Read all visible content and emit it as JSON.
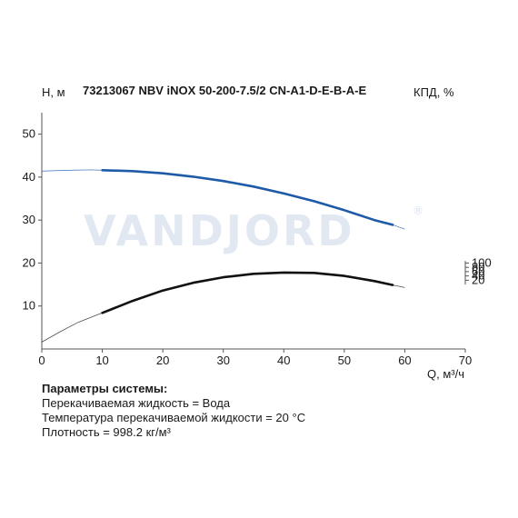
{
  "chart_data": {
    "type": "line",
    "title": "73213067 NBV iNOX 50-200-7.5/2 CN-A1-D-E-B-A-E",
    "xlabel": "Q, м³/ч",
    "ylabel": "H, м",
    "y2label": "КПД, %",
    "xlim": [
      0,
      70
    ],
    "ylim": [
      0,
      55
    ],
    "xticks": [
      "0",
      "10",
      "20",
      "30",
      "40",
      "50",
      "60",
      "70"
    ],
    "yticks": [
      "10",
      "20",
      "30",
      "40",
      "50"
    ],
    "y2ticks": [
      "20",
      "40",
      "60",
      "80",
      "100"
    ],
    "y2_origin_at_head": 15,
    "y2_head_per_unit": 0.05,
    "grid": false,
    "series": [
      {
        "color": "#1e5aa8",
        "axis": "left",
        "extended_x": [
          0,
          2,
          5,
          8,
          10
        ],
        "extended_y": [
          41.4,
          41.5,
          41.6,
          41.7,
          41.6
        ],
        "x": [
          10,
          15,
          20,
          25,
          30,
          35,
          40,
          45,
          50,
          55,
          58
        ],
        "y": [
          41.6,
          41.4,
          40.9,
          40.1,
          39.1,
          37.8,
          36.2,
          34.4,
          32.3,
          30.0,
          28.9
        ],
        "extended_tail_x": [
          58,
          60
        ],
        "extended_tail_y": [
          28.9,
          27.9
        ]
      },
      {
        "color": "#111111",
        "axis": "right",
        "extended_x": [
          0,
          3,
          6,
          10
        ],
        "extended_y": [
          1.6,
          4.0,
          6.2,
          8.4
        ],
        "x": [
          10,
          15,
          20,
          25,
          30,
          35,
          40,
          45,
          50,
          55,
          58
        ],
        "y": [
          8.4,
          11.2,
          13.6,
          15.4,
          16.7,
          17.5,
          17.8,
          17.7,
          17.0,
          15.8,
          14.9
        ],
        "extended_tail_x": [
          58,
          60
        ],
        "extended_tail_y": [
          14.9,
          14.3
        ]
      }
    ]
  },
  "watermark": {
    "text": "VANDJORD",
    "reg": "®"
  },
  "params": {
    "title": "Параметры системы:",
    "lines": [
      "Перекачиваемая жидкость = Вода",
      "Температура перекачиваемой жидкости = 20 °C",
      "Плотность = 998.2 кг/м³"
    ]
  }
}
